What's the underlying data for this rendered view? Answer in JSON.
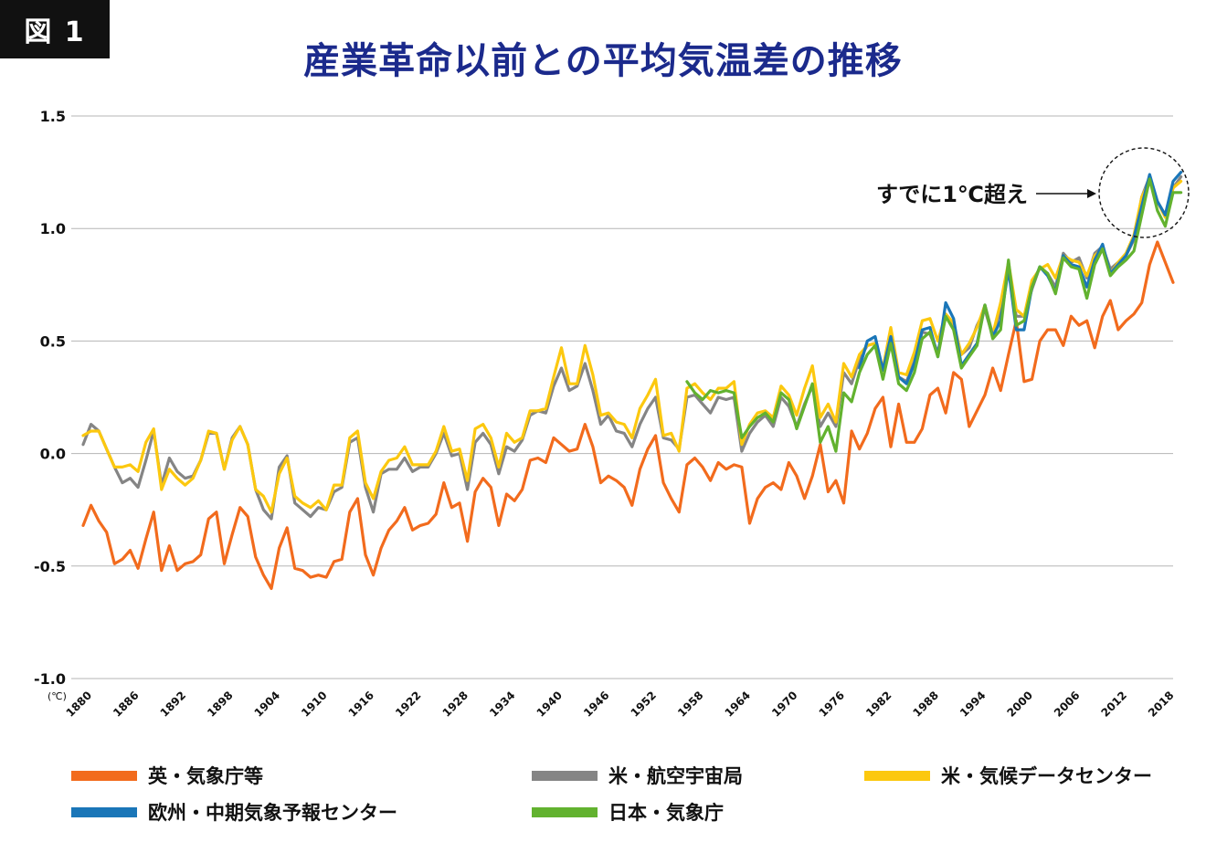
{
  "figure_label": "図 1",
  "title": "産業革命以前との平均気温差の推移",
  "unit_label": "(℃)",
  "annotation": "すでに1℃超え",
  "chart_data": {
    "type": "line",
    "title": "産業革命以前との平均気温差の推移",
    "xlabel": "",
    "ylabel": "(℃)",
    "xlim": [
      1880,
      2019
    ],
    "ylim": [
      -1.0,
      1.5
    ],
    "y_ticks": [
      1.5,
      1.0,
      0.5,
      0.0,
      -0.5,
      -1.0
    ],
    "y_tick_labels": [
      "1.5",
      "1.0",
      "0.5",
      "0.0",
      "-0.5",
      "-1.0"
    ],
    "x_ticks": [
      1880,
      1886,
      1892,
      1898,
      1904,
      1910,
      1916,
      1922,
      1928,
      1934,
      1940,
      1946,
      1952,
      1958,
      1964,
      1970,
      1976,
      1982,
      1988,
      1994,
      2000,
      2006,
      2012,
      2018
    ],
    "grid": true,
    "legend_position": "bottom",
    "series": [
      {
        "name": "英・気象庁等",
        "color": "#f26b1d",
        "x_start": 1880,
        "values": [
          -0.32,
          -0.23,
          -0.3,
          -0.35,
          -0.49,
          -0.47,
          -0.43,
          -0.51,
          -0.38,
          -0.26,
          -0.52,
          -0.41,
          -0.52,
          -0.49,
          -0.48,
          -0.45,
          -0.29,
          -0.26,
          -0.49,
          -0.36,
          -0.24,
          -0.28,
          -0.46,
          -0.54,
          -0.6,
          -0.42,
          -0.33,
          -0.51,
          -0.52,
          -0.55,
          -0.54,
          -0.55,
          -0.48,
          -0.47,
          -0.26,
          -0.2,
          -0.45,
          -0.54,
          -0.42,
          -0.34,
          -0.3,
          -0.24,
          -0.34,
          -0.32,
          -0.31,
          -0.27,
          -0.13,
          -0.24,
          -0.22,
          -0.39,
          -0.17,
          -0.11,
          -0.15,
          -0.32,
          -0.18,
          -0.21,
          -0.16,
          -0.03,
          -0.02,
          -0.04,
          0.07,
          0.04,
          0.01,
          0.02,
          0.13,
          0.03,
          -0.13,
          -0.1,
          -0.12,
          -0.15,
          -0.23,
          -0.07,
          0.02,
          0.08,
          -0.13,
          -0.2,
          -0.26,
          -0.05,
          -0.02,
          -0.06,
          -0.12,
          -0.04,
          -0.07,
          -0.05,
          -0.06,
          -0.31,
          -0.2,
          -0.15,
          -0.13,
          -0.16,
          -0.04,
          -0.1,
          -0.2,
          -0.1,
          0.04,
          -0.17,
          -0.12,
          -0.22,
          0.1,
          0.02,
          0.09,
          0.2,
          0.25,
          0.03,
          0.22,
          0.05,
          0.05,
          0.11,
          0.26,
          0.29,
          0.18,
          0.36,
          0.33,
          0.12,
          0.19,
          0.26,
          0.38,
          0.28,
          0.44,
          0.59,
          0.32,
          0.33,
          0.5,
          0.55,
          0.55,
          0.48,
          0.61,
          0.57,
          0.59,
          0.47,
          0.61,
          0.68,
          0.55,
          0.59,
          0.62,
          0.67,
          0.84,
          0.94,
          0.85,
          0.76
        ]
      },
      {
        "name": "米・航空宇宙局",
        "color": "#858585",
        "x_start": 1880,
        "values": [
          0.04,
          0.13,
          0.1,
          0.02,
          -0.06,
          -0.13,
          -0.11,
          -0.15,
          -0.03,
          0.1,
          -0.14,
          -0.02,
          -0.08,
          -0.11,
          -0.1,
          -0.03,
          0.09,
          0.09,
          -0.07,
          0.07,
          0.12,
          0.04,
          -0.16,
          -0.25,
          -0.29,
          -0.06,
          -0.01,
          -0.22,
          -0.25,
          -0.28,
          -0.24,
          -0.25,
          -0.17,
          -0.15,
          0.05,
          0.07,
          -0.15,
          -0.26,
          -0.09,
          -0.07,
          -0.07,
          -0.02,
          -0.08,
          -0.06,
          -0.06,
          0.0,
          0.09,
          -0.01,
          0.0,
          -0.16,
          0.05,
          0.09,
          0.04,
          -0.09,
          0.03,
          0.01,
          0.06,
          0.17,
          0.19,
          0.18,
          0.3,
          0.38,
          0.28,
          0.3,
          0.4,
          0.28,
          0.13,
          0.17,
          0.1,
          0.09,
          0.03,
          0.13,
          0.2,
          0.25,
          0.07,
          0.06,
          0.02,
          0.25,
          0.26,
          0.22,
          0.18,
          0.25,
          0.24,
          0.25,
          0.01,
          0.09,
          0.14,
          0.17,
          0.12,
          0.25,
          0.21,
          0.12,
          0.22,
          0.3,
          0.12,
          0.18,
          0.12,
          0.36,
          0.31,
          0.42,
          0.48,
          0.49,
          0.37,
          0.5,
          0.34,
          0.32,
          0.41,
          0.54,
          0.53,
          0.45,
          0.61,
          0.57,
          0.44,
          0.47,
          0.57,
          0.64,
          0.52,
          0.64,
          0.81,
          0.61,
          0.61,
          0.73,
          0.83,
          0.8,
          0.74,
          0.89,
          0.85,
          0.87,
          0.78,
          0.89,
          0.92,
          0.82,
          0.85,
          0.88,
          0.95,
          1.14,
          1.23,
          1.12,
          1.06,
          1.18,
          1.23
        ]
      },
      {
        "name": "米・気候データセンター",
        "color": "#fcc80f",
        "x_start": 1880,
        "values": [
          0.08,
          0.1,
          0.1,
          0.02,
          -0.06,
          -0.06,
          -0.05,
          -0.08,
          0.05,
          0.11,
          -0.16,
          -0.07,
          -0.11,
          -0.14,
          -0.11,
          -0.03,
          0.1,
          0.09,
          -0.07,
          0.06,
          0.12,
          0.04,
          -0.16,
          -0.19,
          -0.26,
          -0.09,
          -0.02,
          -0.19,
          -0.22,
          -0.24,
          -0.21,
          -0.25,
          -0.14,
          -0.14,
          0.07,
          0.1,
          -0.13,
          -0.2,
          -0.08,
          -0.03,
          -0.02,
          0.03,
          -0.05,
          -0.05,
          -0.05,
          0.01,
          0.12,
          0.01,
          0.02,
          -0.12,
          0.11,
          0.13,
          0.07,
          -0.06,
          0.09,
          0.05,
          0.07,
          0.19,
          0.19,
          0.2,
          0.34,
          0.47,
          0.31,
          0.31,
          0.48,
          0.35,
          0.17,
          0.18,
          0.14,
          0.13,
          0.07,
          0.2,
          0.26,
          0.33,
          0.08,
          0.09,
          0.01,
          0.29,
          0.31,
          0.27,
          0.24,
          0.29,
          0.29,
          0.32,
          0.04,
          0.13,
          0.18,
          0.19,
          0.16,
          0.3,
          0.26,
          0.17,
          0.29,
          0.39,
          0.16,
          0.22,
          0.14,
          0.4,
          0.34,
          0.44,
          0.48,
          0.49,
          0.38,
          0.56,
          0.36,
          0.35,
          0.45,
          0.59,
          0.6,
          0.5,
          0.62,
          0.58,
          0.44,
          0.49,
          0.56,
          0.66,
          0.53,
          0.67,
          0.85,
          0.64,
          0.61,
          0.77,
          0.82,
          0.84,
          0.78,
          0.88,
          0.86,
          0.85,
          0.79,
          0.88,
          0.91,
          0.8,
          0.85,
          0.89,
          0.97,
          1.14,
          1.21,
          1.12,
          1.05,
          1.18,
          1.21
        ]
      },
      {
        "name": "欧州・中期気象予報センター",
        "color": "#1a76b8",
        "x_start": 1979,
        "values": [
          0.38,
          0.5,
          0.52,
          0.37,
          0.52,
          0.34,
          0.31,
          0.4,
          0.55,
          0.56,
          0.43,
          0.67,
          0.6,
          0.39,
          0.44,
          0.49,
          0.66,
          0.52,
          0.59,
          0.82,
          0.55,
          0.55,
          0.74,
          0.83,
          0.79,
          0.72,
          0.88,
          0.84,
          0.83,
          0.74,
          0.86,
          0.93,
          0.8,
          0.84,
          0.88,
          0.96,
          1.1,
          1.24,
          1.12,
          1.06,
          1.21,
          1.25
        ]
      },
      {
        "name": "日本・気象庁",
        "color": "#62b22f",
        "x_start": 1957,
        "values": [
          0.32,
          0.27,
          0.24,
          0.28,
          0.27,
          0.28,
          0.27,
          0.07,
          0.12,
          0.16,
          0.18,
          0.14,
          0.27,
          0.24,
          0.11,
          0.21,
          0.31,
          0.05,
          0.12,
          0.01,
          0.27,
          0.23,
          0.36,
          0.44,
          0.48,
          0.33,
          0.49,
          0.31,
          0.28,
          0.36,
          0.51,
          0.54,
          0.43,
          0.61,
          0.55,
          0.38,
          0.43,
          0.48,
          0.66,
          0.51,
          0.55,
          0.86,
          0.57,
          0.59,
          0.74,
          0.83,
          0.8,
          0.71,
          0.87,
          0.83,
          0.82,
          0.69,
          0.84,
          0.91,
          0.79,
          0.83,
          0.86,
          0.9,
          1.06,
          1.22,
          1.08,
          1.01,
          1.16,
          1.16
        ]
      }
    ]
  }
}
